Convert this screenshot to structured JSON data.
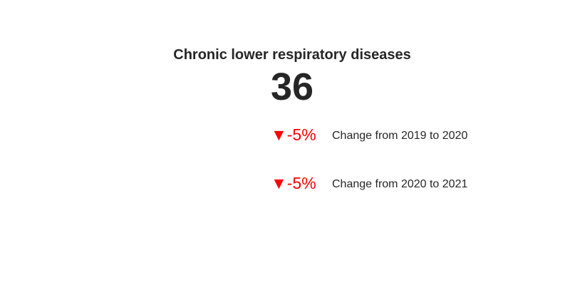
{
  "chart_data": {
    "type": "table",
    "title": "Chronic lower respiratory diseases",
    "value": "36",
    "changes": [
      {
        "arrow": "▼",
        "delta": "-5%",
        "label": "Change from 2019 to 2020"
      },
      {
        "arrow": "▼",
        "delta": "-5%",
        "label": "Change from 2020 to 2021"
      }
    ]
  },
  "colors": {
    "decrease": "#ff0000",
    "increase": "#008000",
    "text": "#262626"
  }
}
